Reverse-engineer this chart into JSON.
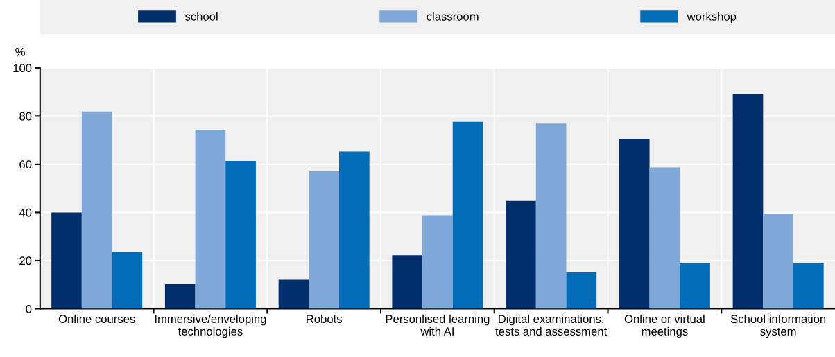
{
  "chart_data": {
    "type": "bar",
    "ylabel": "%",
    "categories": [
      "Online courses",
      "Immersive/enveloping\ntechnologies",
      "Robots",
      "Personlised learning\nwith AI",
      "Digital examinations,\ntests and assessment",
      "Online or virtual\nmeetings",
      "School information\nsystem"
    ],
    "series": [
      {
        "name": "school",
        "color": "#002f6c",
        "values": [
          40,
          10.3,
          12.1,
          22.2,
          44.8,
          70.6,
          89.1
        ]
      },
      {
        "name": "classroom",
        "color": "#7fa8d9",
        "values": [
          81.9,
          74.3,
          57.1,
          38.8,
          76.9,
          58.7,
          39.5
        ]
      },
      {
        "name": "workshop",
        "color": "#006bb6",
        "values": [
          23.6,
          61.4,
          65.3,
          77.6,
          15.2,
          18.9,
          18.9
        ]
      }
    ],
    "ylim": [
      0,
      100
    ],
    "yticks": [
      0,
      20,
      40,
      60,
      80,
      100
    ],
    "grid": "y",
    "legend": "top"
  }
}
